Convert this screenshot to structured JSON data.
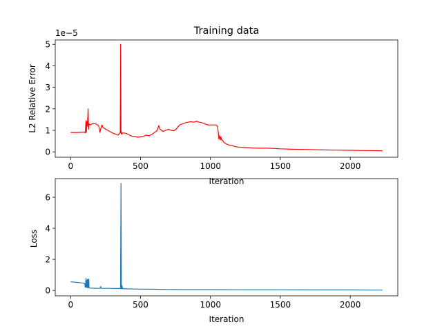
{
  "chart_data": [
    {
      "type": "line",
      "title": "Training data",
      "xlabel": "Iteration",
      "ylabel": "L2 Relative Error",
      "scale_label": "1e−5",
      "xlim": [
        -110,
        2340
      ],
      "ylim": [
        -0.25,
        5.2
      ],
      "xticks": [
        0,
        500,
        1000,
        1500,
        2000
      ],
      "yticks": [
        0,
        1,
        2,
        3,
        4,
        5
      ],
      "grid": false,
      "series": [
        {
          "color": "#ff0000",
          "x": [
            0,
            50,
            100,
            105,
            110,
            113,
            116,
            120,
            125,
            128,
            130,
            133,
            140,
            160,
            180,
            200,
            210,
            220,
            225,
            230,
            250,
            280,
            300,
            320,
            340,
            355,
            358,
            360,
            362,
            365,
            370,
            380,
            400,
            420,
            440,
            460,
            480,
            500,
            520,
            540,
            560,
            580,
            600,
            610,
            620,
            630,
            640,
            650,
            660,
            680,
            700,
            720,
            740,
            760,
            780,
            800,
            820,
            840,
            860,
            880,
            900,
            920,
            940,
            960,
            980,
            1000,
            1020,
            1040,
            1050,
            1055,
            1060,
            1065,
            1070,
            1075,
            1080,
            1085,
            1090,
            1095,
            1100,
            1110,
            1120,
            1140,
            1160,
            1180,
            1200,
            1250,
            1300,
            1350,
            1400,
            1450,
            1500,
            1600,
            1700,
            1800,
            1900,
            2000,
            2100,
            2230
          ],
          "y": [
            0.9,
            0.9,
            0.92,
            0.88,
            1.45,
            0.9,
            1.4,
            1.2,
            2.0,
            1.05,
            1.25,
            1.3,
            1.25,
            1.32,
            1.3,
            1.22,
            0.9,
            1.2,
            1.25,
            1.15,
            1.05,
            0.95,
            0.88,
            0.82,
            0.78,
            0.9,
            5.0,
            0.85,
            0.95,
            0.82,
            0.88,
            0.88,
            0.85,
            0.78,
            0.72,
            0.72,
            0.68,
            0.7,
            0.72,
            0.78,
            0.75,
            0.8,
            0.9,
            0.95,
            1.0,
            1.22,
            1.05,
            1.0,
            0.95,
            1.0,
            1.05,
            1.0,
            0.98,
            1.1,
            1.25,
            1.3,
            1.35,
            1.38,
            1.4,
            1.38,
            1.42,
            1.38,
            1.35,
            1.3,
            1.25,
            1.25,
            1.25,
            1.25,
            1.2,
            0.95,
            0.6,
            0.75,
            0.55,
            0.7,
            0.55,
            0.55,
            0.5,
            0.45,
            0.42,
            0.38,
            0.35,
            0.3,
            0.28,
            0.24,
            0.22,
            0.2,
            0.18,
            0.17,
            0.17,
            0.16,
            0.14,
            0.12,
            0.11,
            0.09,
            0.08,
            0.07,
            0.06,
            0.05
          ]
        }
      ]
    },
    {
      "type": "line",
      "title": "",
      "xlabel": "Iteration",
      "ylabel": "Loss",
      "xlim": [
        -110,
        2340
      ],
      "ylim": [
        -0.35,
        7.2
      ],
      "xticks": [
        0,
        500,
        1000,
        1500,
        2000
      ],
      "yticks": [
        0,
        2,
        4,
        6
      ],
      "grid": false,
      "series": [
        {
          "color": "#1f77b4",
          "x": [
            0,
            40,
            80,
            100,
            105,
            110,
            112,
            115,
            118,
            120,
            122,
            125,
            127,
            130,
            132,
            140,
            160,
            180,
            200,
            210,
            215,
            220,
            225,
            240,
            280,
            320,
            350,
            357,
            360,
            363,
            366,
            368,
            370,
            372,
            380,
            400,
            500,
            600,
            700,
            800,
            1000,
            1200,
            1500,
            1800,
            2000,
            2230
          ],
          "y": [
            0.55,
            0.52,
            0.48,
            0.45,
            0.2,
            0.78,
            0.2,
            0.65,
            0.18,
            0.72,
            0.18,
            0.7,
            0.18,
            0.72,
            0.16,
            0.15,
            0.14,
            0.14,
            0.13,
            0.13,
            0.25,
            0.13,
            0.13,
            0.13,
            0.13,
            0.12,
            0.12,
            0.12,
            6.9,
            0.12,
            0.1,
            0.3,
            0.1,
            0.15,
            0.1,
            0.1,
            0.08,
            0.07,
            0.06,
            0.05,
            0.05,
            0.04,
            0.04,
            0.03,
            0.03,
            0.02
          ]
        }
      ]
    }
  ]
}
